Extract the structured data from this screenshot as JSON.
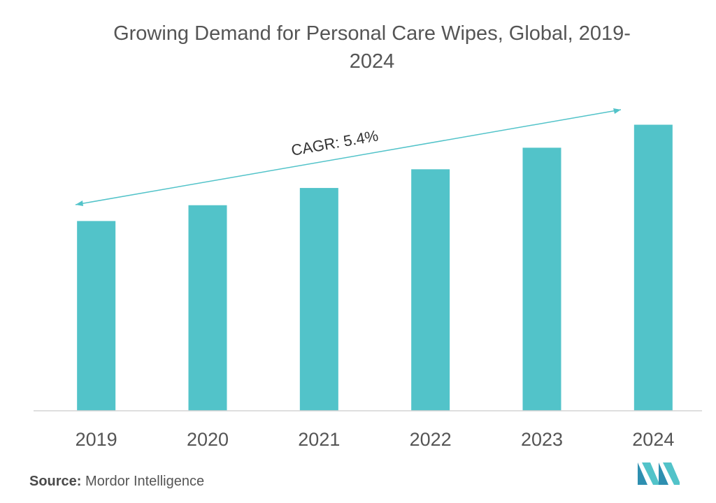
{
  "chart_data": {
    "type": "bar",
    "title": "Growing Demand for Personal Care Wipes, Global, 2019-2024",
    "title_lines": [
      "Growing Demand for Personal Care Wipes, Global, 2019-",
      "2024"
    ],
    "categories": [
      "2019",
      "2020",
      "2021",
      "2022",
      "2023",
      "2024"
    ],
    "values": [
      66.0,
      71.5,
      77.5,
      84.0,
      91.5,
      99.5
    ],
    "xlabel": "",
    "ylabel": "",
    "ylim": [
      0,
      104
    ],
    "grid": false,
    "legend": "none",
    "annotation": "CAGR: 5.4%",
    "colors": {
      "bar": "#52c3c9",
      "arrow": "#52c3c9",
      "axis": "#d3d3d3",
      "text": "#555555"
    }
  },
  "source": {
    "label": "Source:",
    "text": "Mordor Intelligence"
  },
  "logo": {
    "icon": "mordor-intelligence-logo-icon",
    "colors": [
      "#2e8fb0",
      "#52c3c9"
    ]
  }
}
